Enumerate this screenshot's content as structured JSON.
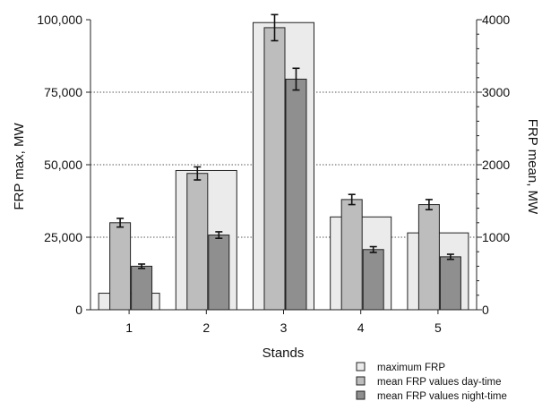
{
  "chart_data": {
    "type": "bar",
    "xlabel": "Stands",
    "ylabel": "FRP max, MW",
    "y2label": "FRP mean, MW",
    "categories": [
      "1",
      "2",
      "3",
      "4",
      "5"
    ],
    "ylim": [
      0,
      100000
    ],
    "y2lim": [
      0,
      4000
    ],
    "yticks": [
      "0",
      "25,000",
      "50,000",
      "75,000",
      "100,000"
    ],
    "y2ticks": [
      "0",
      "1000",
      "2000",
      "3000",
      "4000"
    ],
    "grid": "dotted horizontal at 25,000, 50,000, 75,000 (left axis)",
    "legend_position": "bottom-right, below plot",
    "series": [
      {
        "name": "maximum FRP",
        "axis": "left",
        "color": "#ebebeb",
        "values": [
          5700,
          48000,
          99000,
          32000,
          26500
        ]
      },
      {
        "name": "mean FRP values day-time",
        "axis": "right",
        "color": "#bdbdbd",
        "values": [
          1200,
          1880,
          3890,
          1520,
          1450
        ],
        "errors": [
          60,
          90,
          180,
          70,
          70
        ]
      },
      {
        "name": "mean FRP values night-time",
        "axis": "right",
        "color": "#8f8f8f",
        "values": [
          600,
          1030,
          3180,
          830,
          730
        ],
        "errors": [
          30,
          45,
          150,
          40,
          35
        ]
      }
    ]
  }
}
